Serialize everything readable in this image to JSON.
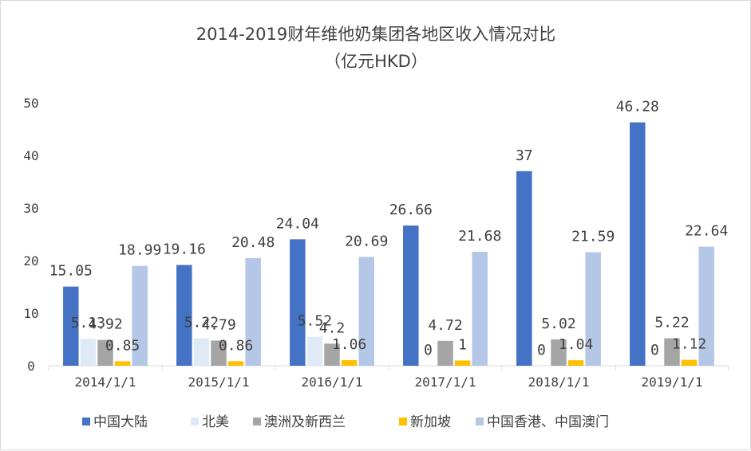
{
  "chart_data": {
    "type": "bar",
    "title": "2014-2019财年维他奶集团各地区收入情况对比",
    "subtitle": "（亿元HKD）",
    "xlabel": "",
    "ylabel": "",
    "ylim": [
      0,
      50
    ],
    "yticks": [
      0,
      10,
      20,
      30,
      40,
      50
    ],
    "grid": false,
    "legend_position": "bottom",
    "categories": [
      "2014/1/1",
      "2015/1/1",
      "2016/1/1",
      "2017/1/1",
      "2018/1/1",
      "2019/1/1"
    ],
    "series": [
      {
        "name": "中国大陆",
        "color": "#4472c4",
        "values": [
          15.05,
          19.16,
          24.04,
          26.66,
          37,
          46.28
        ],
        "labels": [
          "15.05",
          "19.16",
          "24.04",
          "26.66",
          "37",
          "46.28"
        ]
      },
      {
        "name": "北美",
        "color": "#deebf7",
        "values": [
          5.13,
          5.22,
          5.52,
          0,
          0,
          0
        ],
        "labels": [
          "5.13",
          "5.22",
          "5.52",
          "0",
          "0",
          "0"
        ]
      },
      {
        "name": "澳洲及新西兰",
        "color": "#a5a5a5",
        "values": [
          4.92,
          4.79,
          4.2,
          4.72,
          5.02,
          5.22
        ],
        "labels": [
          "4.92",
          "4.79",
          "4.2",
          "4.72",
          "5.02",
          "5.22"
        ]
      },
      {
        "name": "新加坡",
        "color": "#ffc000",
        "values": [
          0.85,
          0.86,
          1.06,
          1,
          1.04,
          1.12
        ],
        "labels": [
          "0.85",
          "0.86",
          "1.06",
          "1",
          "1.04",
          "1.12"
        ]
      },
      {
        "name": "中国香港、中国澳门",
        "color": "#b4c7e7",
        "values": [
          18.99,
          20.48,
          20.69,
          21.68,
          21.59,
          22.64
        ],
        "labels": [
          "18.99",
          "20.48",
          "20.69",
          "21.68",
          "21.59",
          "22.64"
        ]
      }
    ]
  }
}
